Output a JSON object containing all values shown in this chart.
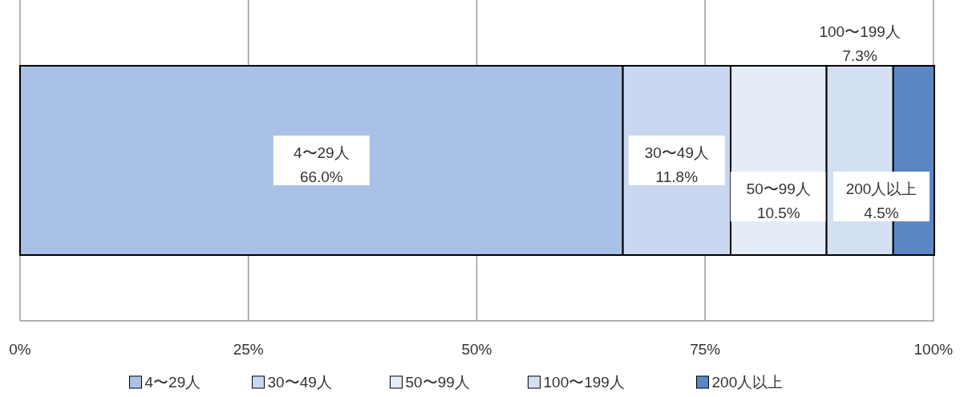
{
  "chart_data": {
    "type": "bar",
    "orientation": "horizontal",
    "stacked": true,
    "categories": [
      null
    ],
    "series": [
      {
        "name": "4〜29人",
        "color": "#a9c1e6",
        "values": [
          66.0
        ],
        "value_labels": [
          "66.0%"
        ]
      },
      {
        "name": "30〜49人",
        "color": "#c9d8f0",
        "values": [
          11.8
        ],
        "value_labels": [
          "11.8%"
        ]
      },
      {
        "name": "50〜99人",
        "color": "#e4ecf8",
        "values": [
          10.5
        ],
        "value_labels": [
          "10.5%"
        ]
      },
      {
        "name": "100〜199人",
        "color": "#d3e0f3",
        "values": [
          7.3
        ],
        "value_labels": [
          "7.3%"
        ]
      },
      {
        "name": "200人以上",
        "color": "#5b87c5",
        "values": [
          4.5
        ],
        "value_labels": [
          "4.5%"
        ]
      }
    ],
    "xlim": [
      0,
      100.1
    ],
    "xticks": [
      {
        "value": 0,
        "label": "0%"
      },
      {
        "value": 25,
        "label": "25%"
      },
      {
        "value": 50,
        "label": "50%"
      },
      {
        "value": 75,
        "label": "75%"
      },
      {
        "value": 100,
        "label": "100%"
      }
    ],
    "grid": "x",
    "legend": "bottom"
  }
}
